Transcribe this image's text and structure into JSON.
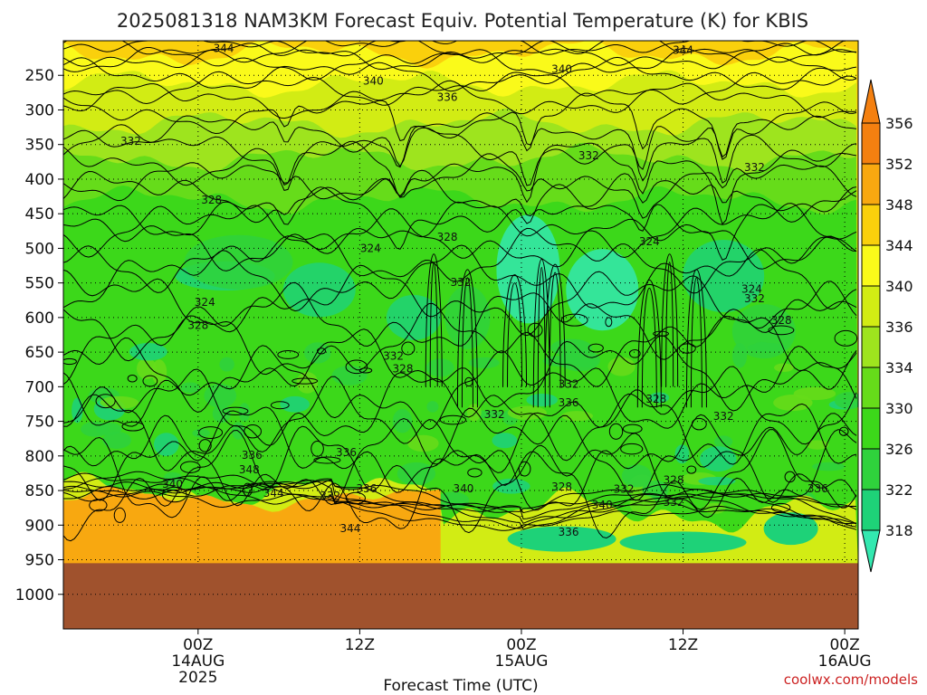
{
  "chart_data": {
    "type": "heatmap",
    "title": "2025081318 NAM3KM Forecast Equiv. Potential Temperature (K) for KBIS",
    "xlabel": "Forecast Time (UTC)",
    "ylabel": "",
    "credit": "coolwx.com/models",
    "x_range_hours": [
      -10,
      49
    ],
    "y_range_hpa": [
      200,
      1050
    ],
    "ground_pressure_hpa": 955,
    "y_ticks": [
      250,
      300,
      350,
      400,
      450,
      500,
      550,
      600,
      650,
      700,
      750,
      800,
      850,
      900,
      950,
      1000
    ],
    "x_ticks": [
      {
        "hour": 0,
        "line1": "00Z",
        "line2": "14AUG",
        "line3": "2025"
      },
      {
        "hour": 12,
        "line1": "12Z",
        "line2": "",
        "line3": ""
      },
      {
        "hour": 24,
        "line1": "00Z",
        "line2": "15AUG",
        "line3": ""
      },
      {
        "hour": 36,
        "line1": "12Z",
        "line2": "",
        "line3": ""
      },
      {
        "hour": 48,
        "line1": "00Z",
        "line2": "16AUG",
        "line3": ""
      }
    ],
    "colorbar": {
      "levels": [
        318,
        322,
        326,
        330,
        334,
        336,
        340,
        344,
        348,
        352,
        356
      ],
      "colors": [
        "#33e8b0",
        "#1ed278",
        "#2fd23c",
        "#3cd81a",
        "#66dc1a",
        "#9ee41e",
        "#d2ec14",
        "#fafa1a",
        "#fad00c",
        "#f8a810",
        "#f48010"
      ]
    },
    "contour_labels": [
      {
        "text": "344",
        "hour": 1.9,
        "p": 211
      },
      {
        "text": "344",
        "hour": 36.0,
        "p": 214
      },
      {
        "text": "340",
        "hour": 27.0,
        "p": 241
      },
      {
        "text": "340",
        "hour": 13.0,
        "p": 258
      },
      {
        "text": "336",
        "hour": 18.5,
        "p": 282
      },
      {
        "text": "332",
        "hour": -5.0,
        "p": 345
      },
      {
        "text": "332",
        "hour": 29.0,
        "p": 366
      },
      {
        "text": "332",
        "hour": 41.3,
        "p": 383
      },
      {
        "text": "328",
        "hour": 1.0,
        "p": 430
      },
      {
        "text": "328",
        "hour": 18.5,
        "p": 484
      },
      {
        "text": "324",
        "hour": 12.8,
        "p": 500
      },
      {
        "text": "324",
        "hour": 33.5,
        "p": 490
      },
      {
        "text": "324",
        "hour": 0.5,
        "p": 578
      },
      {
        "text": "324",
        "hour": 41.1,
        "p": 559
      },
      {
        "text": "332",
        "hour": 19.5,
        "p": 549
      },
      {
        "text": "332",
        "hour": 41.3,
        "p": 573
      },
      {
        "text": "328",
        "hour": 43.3,
        "p": 604
      },
      {
        "text": "328",
        "hour": 0.0,
        "p": 611
      },
      {
        "text": "332",
        "hour": 14.5,
        "p": 656
      },
      {
        "text": "328",
        "hour": 15.2,
        "p": 674
      },
      {
        "text": "332",
        "hour": 27.5,
        "p": 696
      },
      {
        "text": "336",
        "hour": 27.5,
        "p": 723
      },
      {
        "text": "328",
        "hour": 34.0,
        "p": 718
      },
      {
        "text": "332",
        "hour": 22.0,
        "p": 740
      },
      {
        "text": "332",
        "hour": 39.0,
        "p": 743
      },
      {
        "text": "336",
        "hour": 4.0,
        "p": 799
      },
      {
        "text": "336",
        "hour": 11.0,
        "p": 795
      },
      {
        "text": "348",
        "hour": 3.8,
        "p": 820
      },
      {
        "text": "340",
        "hour": -1.9,
        "p": 841
      },
      {
        "text": "344",
        "hour": 5.6,
        "p": 854
      },
      {
        "text": "332",
        "hour": 9.8,
        "p": 858
      },
      {
        "text": "336",
        "hour": 12.5,
        "p": 847
      },
      {
        "text": "340",
        "hour": 19.7,
        "p": 847
      },
      {
        "text": "328",
        "hour": 27.0,
        "p": 845
      },
      {
        "text": "332",
        "hour": 31.6,
        "p": 848
      },
      {
        "text": "328",
        "hour": 35.3,
        "p": 835
      },
      {
        "text": "332",
        "hour": 35.3,
        "p": 867
      },
      {
        "text": "340",
        "hour": 30.0,
        "p": 871
      },
      {
        "text": "344",
        "hour": 11.3,
        "p": 905
      },
      {
        "text": "336",
        "hour": 27.5,
        "p": 910
      },
      {
        "text": "336",
        "hour": 46.0,
        "p": 847
      }
    ]
  }
}
